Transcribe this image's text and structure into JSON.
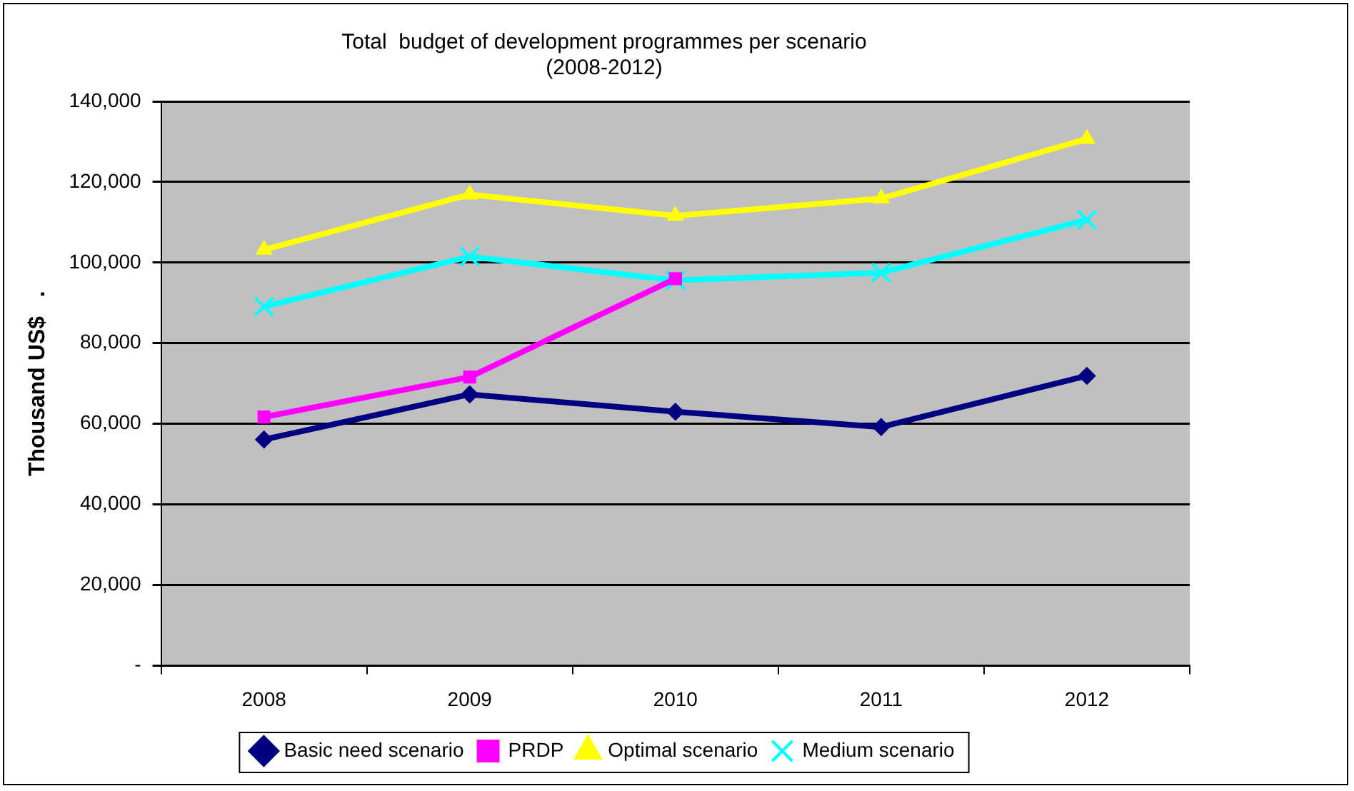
{
  "chart_data": {
    "type": "line",
    "title": [
      "Total  budget of development programmes per scenario",
      "(2008-2012)"
    ],
    "ylabel": "Thousand US$   .",
    "categories": [
      "2008",
      "2009",
      "2010",
      "2011",
      "2012"
    ],
    "series": [
      {
        "name": "Basic need scenario",
        "color": "#000080",
        "marker": "diamond",
        "values": [
          56100,
          67300,
          63000,
          59200,
          71900
        ]
      },
      {
        "name": "PRDP",
        "color": "#ff00ff",
        "marker": "square",
        "values": [
          61700,
          71600,
          96000,
          null,
          null
        ]
      },
      {
        "name": "Optimal scenario",
        "color": "#ffff00",
        "marker": "triangle",
        "values": [
          103200,
          116900,
          111600,
          115900,
          130700
        ]
      },
      {
        "name": "Medium scenario",
        "color": "#00ffff",
        "marker": "cross",
        "values": [
          89100,
          101500,
          95600,
          97500,
          110600
        ]
      }
    ],
    "ylim": [
      0,
      140000
    ],
    "yticks": [
      {
        "value": 0,
        "label": "-"
      },
      {
        "value": 20000,
        "label": "20,000"
      },
      {
        "value": 40000,
        "label": "40,000"
      },
      {
        "value": 60000,
        "label": "60,000"
      },
      {
        "value": 80000,
        "label": "80,000"
      },
      {
        "value": 100000,
        "label": "100,000"
      },
      {
        "value": 120000,
        "label": "120,000"
      },
      {
        "value": 140000,
        "label": "140,000"
      }
    ],
    "grid": "y",
    "legend": "bottom"
  }
}
